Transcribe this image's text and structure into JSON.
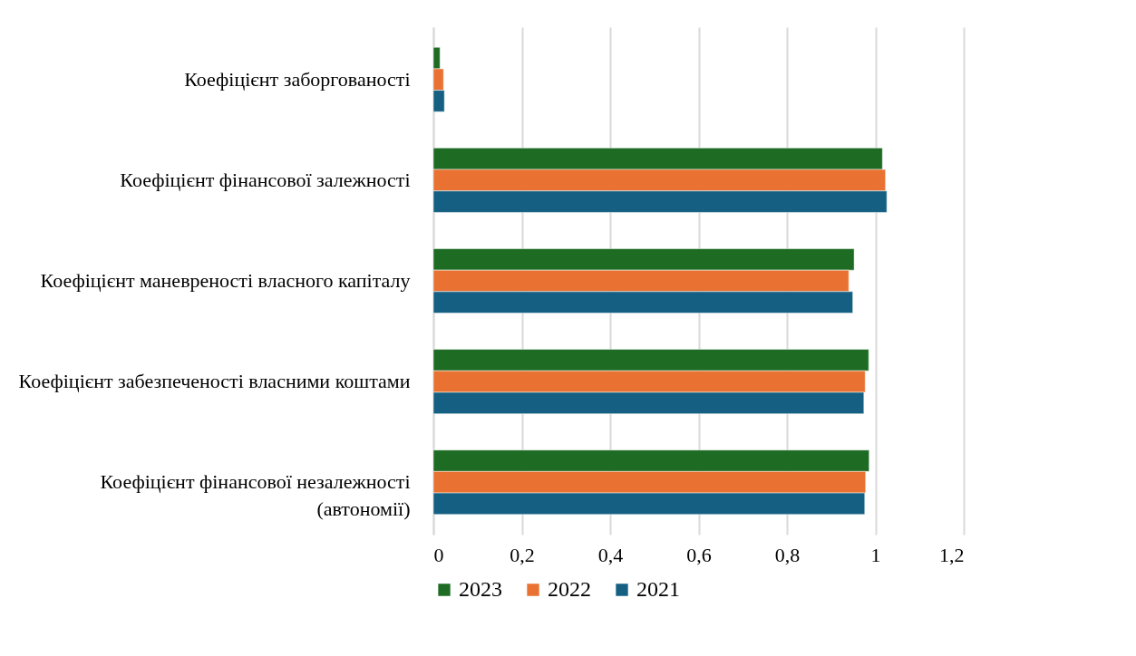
{
  "chart_data": {
    "type": "bar",
    "orientation": "horizontal",
    "categories": [
      "Коефіцієнт заборгованості",
      "Коефіцієнт фінансової залежності",
      "Коефіцієнт маневреності власного капіталу",
      "Коефіцієнт забезпеченості власними коштами",
      "Коефіцієнт фінансової незалежності (автономії)"
    ],
    "series": [
      {
        "name": "2023",
        "color": "#1e6b24",
        "values": [
          0.015,
          1.016,
          0.952,
          0.985,
          0.986
        ]
      },
      {
        "name": "2022",
        "color": "#e97132",
        "values": [
          0.023,
          1.023,
          0.94,
          0.977,
          0.978
        ]
      },
      {
        "name": "2021",
        "color": "#156082",
        "values": [
          0.025,
          1.026,
          0.949,
          0.974,
          0.976
        ]
      }
    ],
    "xlim": [
      0,
      1.2
    ],
    "xticks": [
      0,
      {
        "value": 0.2,
        "label": "0,2"
      },
      {
        "value": 0.4,
        "label": "0,4"
      },
      {
        "value": 0.6,
        "label": "0,6"
      },
      {
        "value": 0.8,
        "label": "0,8"
      },
      1,
      {
        "value": 1.2,
        "label": "1,2"
      }
    ],
    "grid": "x",
    "legend": "bottom"
  }
}
